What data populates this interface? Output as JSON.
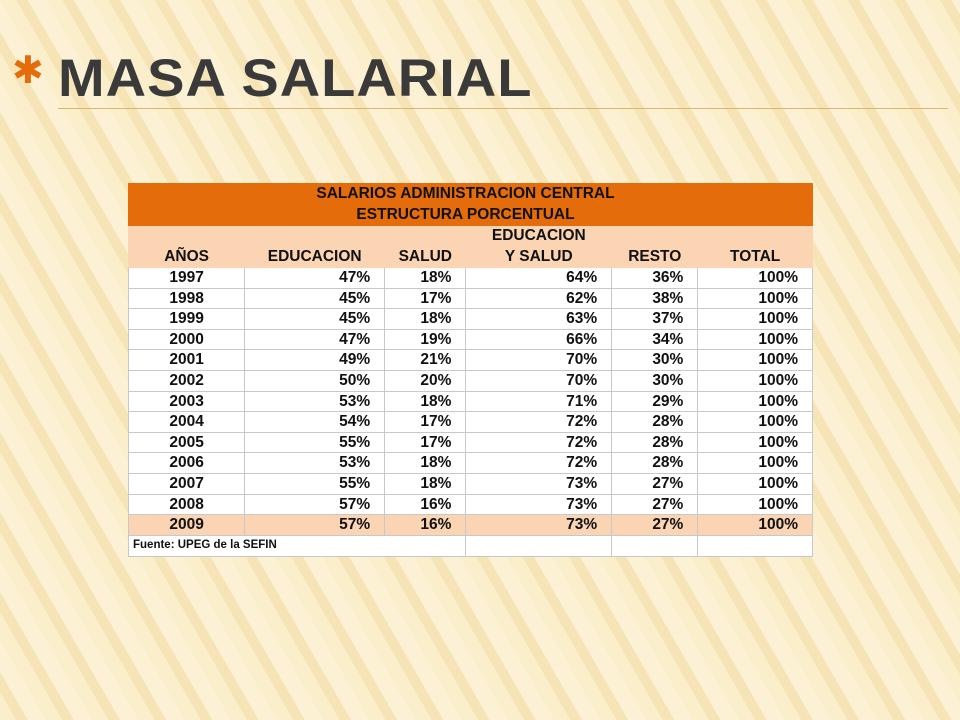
{
  "header": {
    "title": "MASA SALARIAL"
  },
  "table": {
    "title_lines": [
      "SALARIOS ADMINISTRACION CENTRAL",
      "ESTRUCTURA PORCENTUAL"
    ],
    "columns": [
      [
        "AÑOS"
      ],
      [
        "EDUCACION"
      ],
      [
        "SALUD"
      ],
      [
        "EDUCACION",
        "Y SALUD"
      ],
      [
        "RESTO"
      ],
      [
        "TOTAL"
      ]
    ],
    "rows": [
      [
        "1997",
        "47%",
        "18%",
        "64%",
        "36%",
        "100%"
      ],
      [
        "1998",
        "45%",
        "17%",
        "62%",
        "38%",
        "100%"
      ],
      [
        "1999",
        "45%",
        "18%",
        "63%",
        "37%",
        "100%"
      ],
      [
        "2000",
        "47%",
        "19%",
        "66%",
        "34%",
        "100%"
      ],
      [
        "2001",
        "49%",
        "21%",
        "70%",
        "30%",
        "100%"
      ],
      [
        "2002",
        "50%",
        "20%",
        "70%",
        "30%",
        "100%"
      ],
      [
        "2003",
        "53%",
        "18%",
        "71%",
        "29%",
        "100%"
      ],
      [
        "2004",
        "54%",
        "17%",
        "72%",
        "28%",
        "100%"
      ],
      [
        "2005",
        "55%",
        "17%",
        "72%",
        "28%",
        "100%"
      ],
      [
        "2006",
        "53%",
        "18%",
        "72%",
        "28%",
        "100%"
      ],
      [
        "2007",
        "55%",
        "18%",
        "73%",
        "27%",
        "100%"
      ],
      [
        "2008",
        "57%",
        "16%",
        "73%",
        "27%",
        "100%"
      ],
      [
        "2009",
        "57%",
        "16%",
        "73%",
        "27%",
        "100%"
      ]
    ],
    "source": "Fuente: UPEG de la SEFIN"
  }
}
